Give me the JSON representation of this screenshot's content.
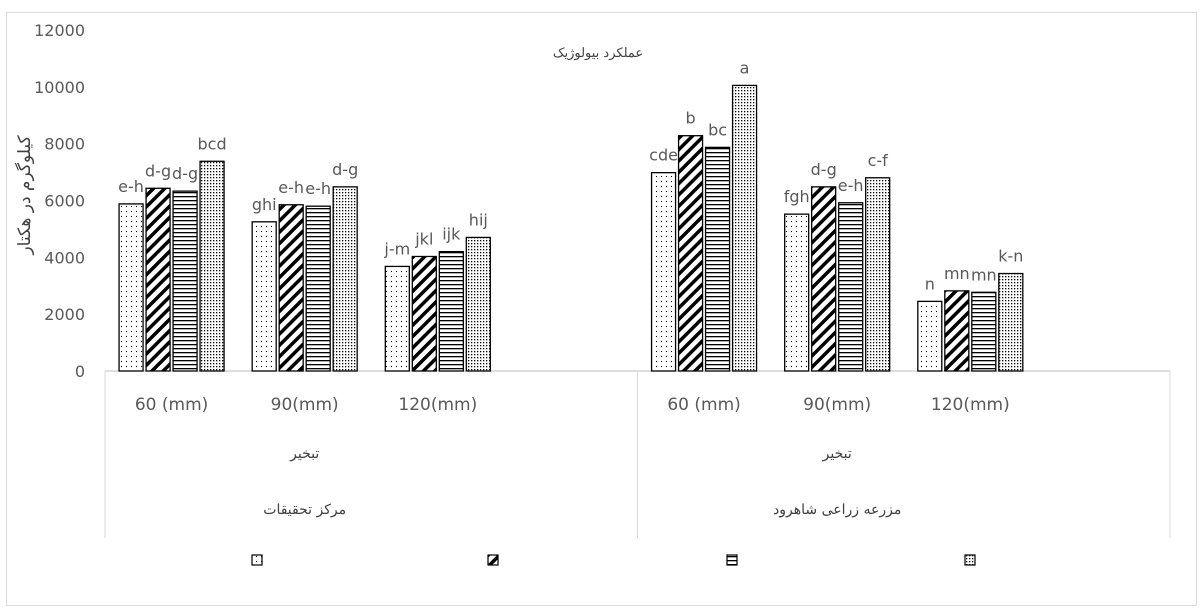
{
  "chart_data": {
    "type": "bar",
    "title": "عملکرد بیولوژیک",
    "ylabel": "کیلوگرم در هکتار",
    "ylim": [
      0,
      12000
    ],
    "yticks": [
      0,
      2000,
      4000,
      6000,
      8000,
      10000,
      12000
    ],
    "grid": false,
    "legend_position": "bottom",
    "groups": [
      {
        "label": "مرکز تحقیقات",
        "sublabel": "تبخیر",
        "categories": [
          "60 (mm)",
          "90(mm)",
          "120(mm)"
        ]
      },
      {
        "label": "مزرعه زراعی شاهرود",
        "sublabel": "تبخیر",
        "categories": [
          "60 (mm)",
          "90(mm)",
          "120(mm)"
        ]
      }
    ],
    "series": [
      {
        "values": [
          5880,
          5250,
          3680,
          6980,
          5520,
          2450
        ],
        "letters": [
          "e-h",
          "ghi",
          "j-m",
          "cde",
          "fgh",
          "n"
        ]
      },
      {
        "values": [
          6430,
          5850,
          4030,
          8280,
          6480,
          2820
        ],
        "letters": [
          "d-g",
          "e-h",
          "jkl",
          "b",
          "d-g",
          "mn"
        ]
      },
      {
        "values": [
          6330,
          5800,
          4200,
          7870,
          5920,
          2770
        ],
        "letters": [
          "d-g",
          "e-h",
          "ijk",
          "bc",
          "e-h",
          "mn"
        ]
      },
      {
        "values": [
          7380,
          6480,
          4700,
          10050,
          6800,
          3430
        ],
        "letters": [
          "bcd",
          "d-g",
          "hij",
          "a",
          "c-f",
          "k-n"
        ]
      }
    ]
  }
}
